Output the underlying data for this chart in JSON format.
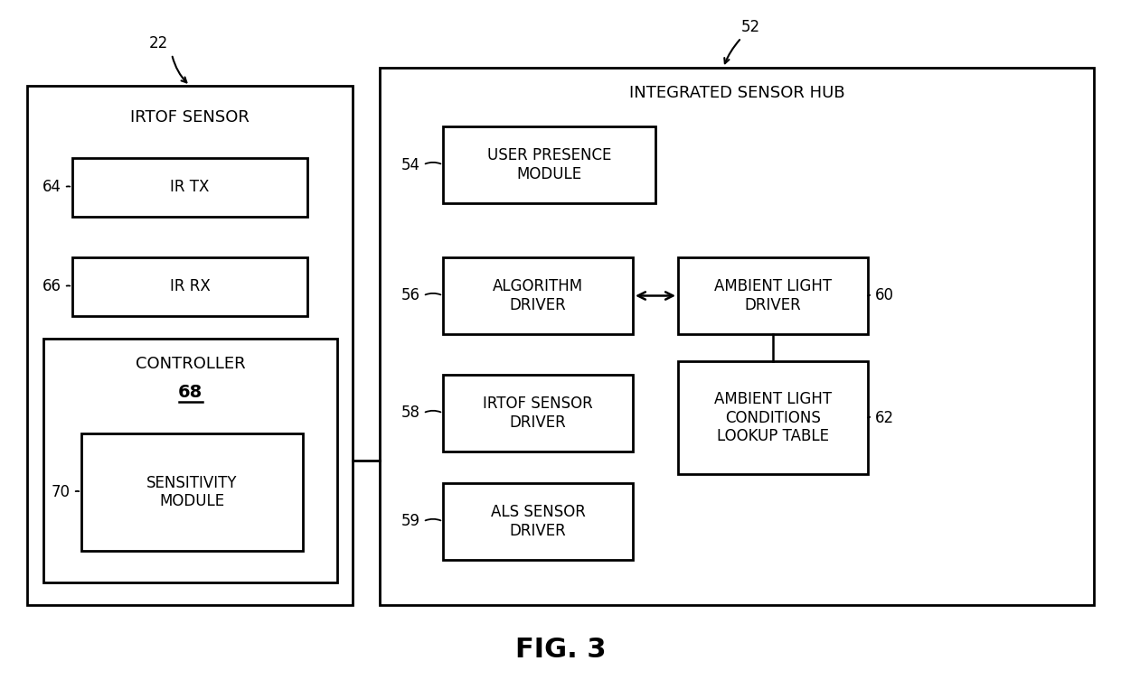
{
  "fig_label": "FIG. 3",
  "background_color": "#ffffff",
  "line_color": "#000000",
  "text_color": "#000000",
  "label_22": "22",
  "label_52": "52",
  "label_54": "54",
  "label_56": "56",
  "label_58": "58",
  "label_59": "59",
  "label_60": "60",
  "label_62": "62",
  "label_64": "64",
  "label_66": "66",
  "label_68": "68",
  "label_70": "70",
  "irtof_sensor_title": "IRTOF SENSOR",
  "ir_tx_label": "IR TX",
  "ir_rx_label": "IR RX",
  "controller_label": "CONTROLLER",
  "controller_num": "68",
  "sensitivity_label": "SENSITIVITY\nMODULE",
  "hub_title": "INTEGRATED SENSOR HUB",
  "user_presence_label": "USER PRESENCE\nMODULE",
  "algorithm_label": "ALGORITHM\nDRIVER",
  "ambient_light_driver_label": "AMBIENT LIGHT\nDRIVER",
  "irtof_sensor_driver_label": "IRTOF SENSOR\nDRIVER",
  "als_sensor_driver_label": "ALS SENSOR\nDRIVER",
  "ambient_light_conditions_label": "AMBIENT LIGHT\nCONDITIONS\nLOOKUP TABLE"
}
